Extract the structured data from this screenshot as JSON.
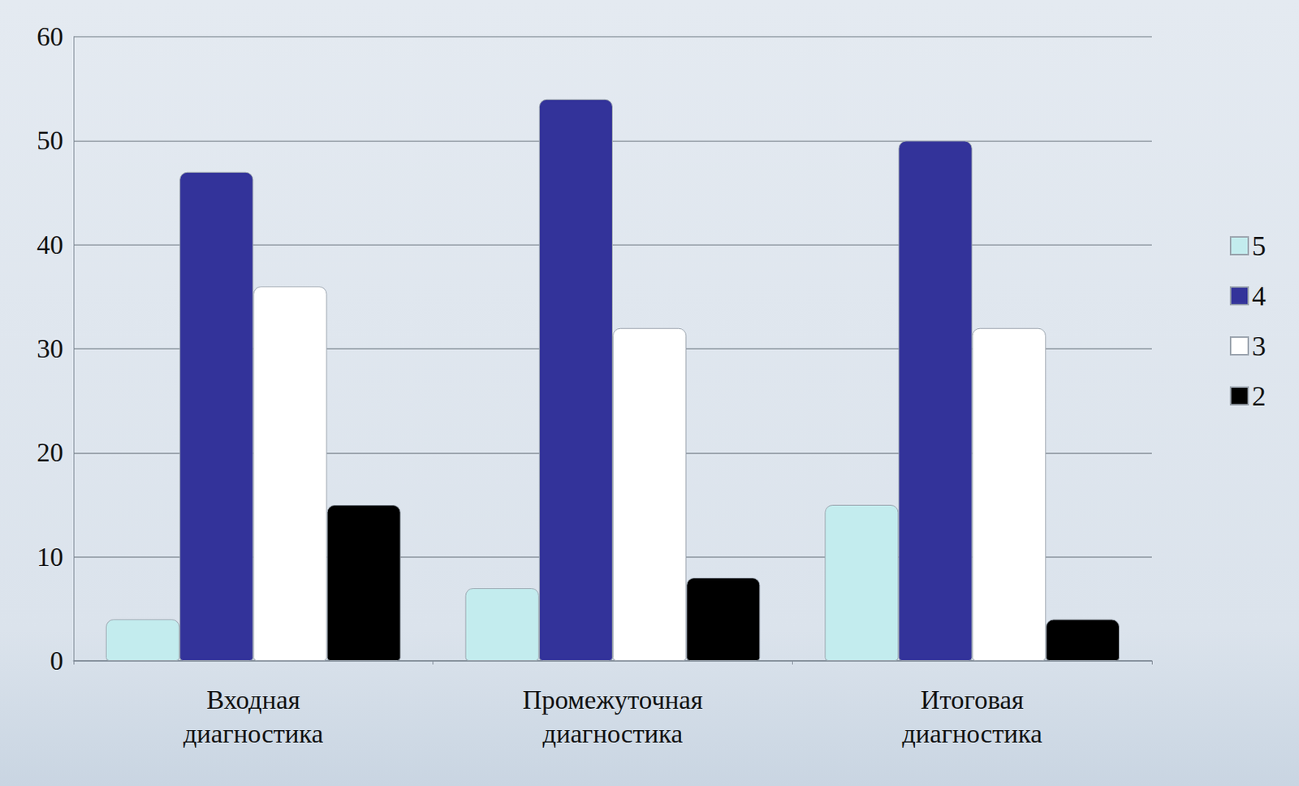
{
  "chart_data": {
    "type": "bar",
    "categories": [
      "Входная диагностика",
      "Промежуточная диагностика",
      "Итоговая диагностика"
    ],
    "series": [
      {
        "name": "5",
        "color": "#c3ecee",
        "values": [
          4,
          7,
          15
        ]
      },
      {
        "name": "4",
        "color": "#33339a",
        "values": [
          47,
          54,
          50
        ]
      },
      {
        "name": "3",
        "color": "#ffffff",
        "values": [
          36,
          32,
          32
        ]
      },
      {
        "name": "2",
        "color": "#000000",
        "values": [
          15,
          8,
          4
        ]
      }
    ],
    "ylim": [
      0,
      60
    ],
    "yticks": [
      0,
      10,
      20,
      30,
      40,
      50,
      60
    ],
    "grid": true,
    "legend": "right"
  }
}
